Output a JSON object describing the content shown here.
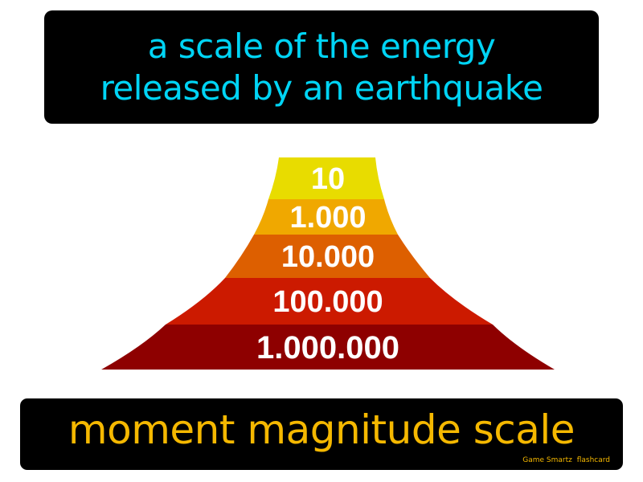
{
  "definition": {
    "lines": [
      "a scale of the energy",
      "released by an earthquake"
    ]
  },
  "pyramid": {
    "levels": [
      {
        "label": "10",
        "color": "#e8dc00"
      },
      {
        "label": "1.000",
        "color": "#f0a800"
      },
      {
        "label": "10.000",
        "color": "#dd5f00"
      },
      {
        "label": "100.000",
        "color": "#cc1a00"
      },
      {
        "label": "1.000.000",
        "color": "#8e0000"
      }
    ]
  },
  "term": {
    "text": "moment magnitude scale"
  },
  "brand": {
    "name": "Game Smartz",
    "suffix": "flashcard"
  },
  "colors": {
    "definition_text": "#00d4f5",
    "term_text": "#f5b800",
    "box_background": "#000000"
  }
}
